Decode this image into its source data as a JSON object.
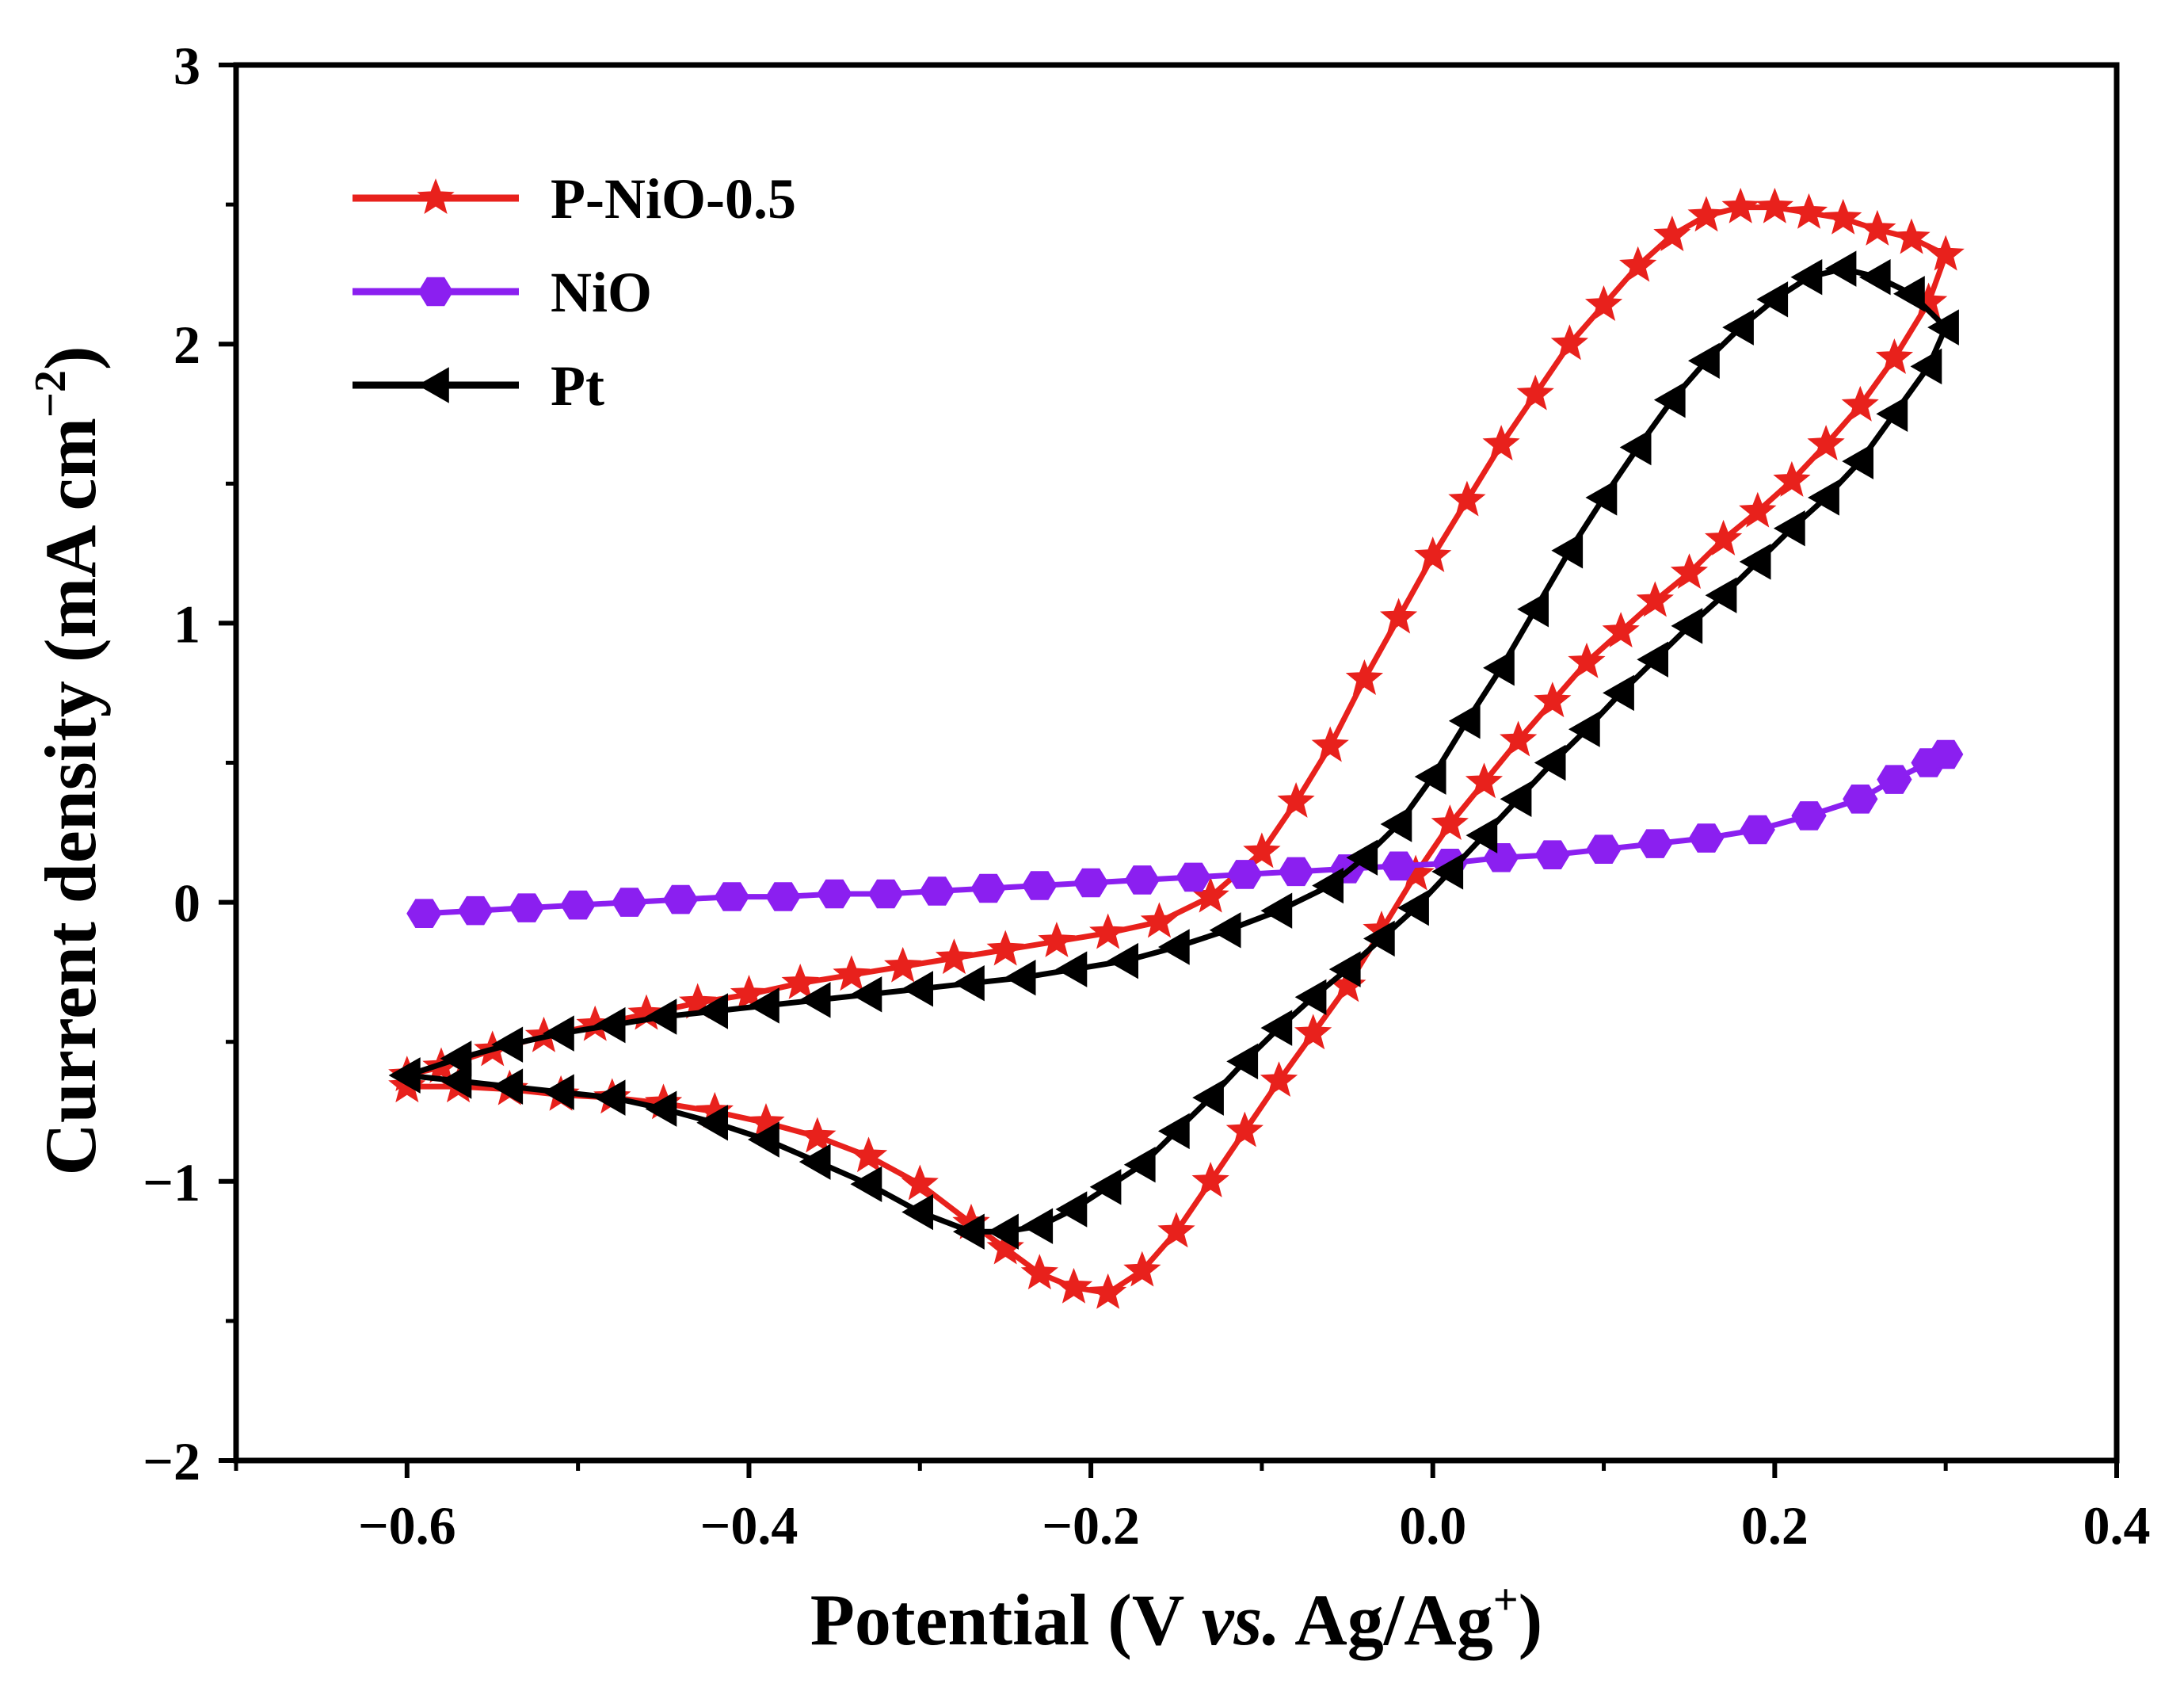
{
  "chart_data": {
    "type": "line",
    "title": "",
    "xlabel": {
      "prefix": "Potential (V ",
      "italic": "vs.",
      "middle": " Ag/Ag",
      "superscript": "+",
      "suffix": ")"
    },
    "ylabel": {
      "main": "Current density (mA cm",
      "superscript": "−2",
      "suffix": ")"
    },
    "xlim": [
      -0.7,
      0.4
    ],
    "ylim": [
      -2,
      3
    ],
    "xticks": [
      -0.6,
      -0.4,
      -0.2,
      0.0,
      0.2,
      0.4
    ],
    "xtick_labels": [
      "−0.6",
      "−0.4",
      "−0.2",
      "0.0",
      "0.2",
      "0.4"
    ],
    "yticks": [
      -2,
      -1,
      0,
      1,
      2,
      3
    ],
    "ytick_labels": [
      "−2",
      "−1",
      "0",
      "1",
      "2",
      "3"
    ],
    "grid": false,
    "legend_position": "top-left",
    "series": [
      {
        "name": "P-NiO-0.5",
        "color": "#e8211c",
        "marker": "star",
        "points": [
          [
            -0.6,
            -0.62
          ],
          [
            -0.58,
            -0.59
          ],
          [
            -0.55,
            -0.53
          ],
          [
            -0.52,
            -0.48
          ],
          [
            -0.49,
            -0.44
          ],
          [
            -0.46,
            -0.4
          ],
          [
            -0.43,
            -0.36
          ],
          [
            -0.4,
            -0.33
          ],
          [
            -0.37,
            -0.29
          ],
          [
            -0.34,
            -0.26
          ],
          [
            -0.31,
            -0.23
          ],
          [
            -0.28,
            -0.2
          ],
          [
            -0.25,
            -0.17
          ],
          [
            -0.22,
            -0.14
          ],
          [
            -0.19,
            -0.11
          ],
          [
            -0.16,
            -0.07
          ],
          [
            -0.13,
            0.02
          ],
          [
            -0.1,
            0.18
          ],
          [
            -0.08,
            0.36
          ],
          [
            -0.06,
            0.56
          ],
          [
            -0.04,
            0.8
          ],
          [
            -0.02,
            1.02
          ],
          [
            0.0,
            1.24
          ],
          [
            0.02,
            1.44
          ],
          [
            0.04,
            1.64
          ],
          [
            0.06,
            1.82
          ],
          [
            0.08,
            2.0
          ],
          [
            0.1,
            2.14
          ],
          [
            0.12,
            2.28
          ],
          [
            0.14,
            2.39
          ],
          [
            0.16,
            2.46
          ],
          [
            0.18,
            2.49
          ],
          [
            0.2,
            2.49
          ],
          [
            0.22,
            2.47
          ],
          [
            0.24,
            2.45
          ],
          [
            0.26,
            2.41
          ],
          [
            0.28,
            2.38
          ],
          [
            0.3,
            2.32
          ],
          [
            0.29,
            2.15
          ],
          [
            0.27,
            1.95
          ],
          [
            0.25,
            1.78
          ],
          [
            0.23,
            1.64
          ],
          [
            0.21,
            1.51
          ],
          [
            0.19,
            1.4
          ],
          [
            0.17,
            1.3
          ],
          [
            0.15,
            1.18
          ],
          [
            0.13,
            1.08
          ],
          [
            0.11,
            0.97
          ],
          [
            0.09,
            0.86
          ],
          [
            0.07,
            0.72
          ],
          [
            0.05,
            0.58
          ],
          [
            0.03,
            0.43
          ],
          [
            0.01,
            0.28
          ],
          [
            -0.01,
            0.1
          ],
          [
            -0.03,
            -0.1
          ],
          [
            -0.05,
            -0.3
          ],
          [
            -0.07,
            -0.47
          ],
          [
            -0.09,
            -0.64
          ],
          [
            -0.11,
            -0.82
          ],
          [
            -0.13,
            -1.0
          ],
          [
            -0.15,
            -1.18
          ],
          [
            -0.17,
            -1.32
          ],
          [
            -0.19,
            -1.4
          ],
          [
            -0.21,
            -1.38
          ],
          [
            -0.23,
            -1.33
          ],
          [
            -0.25,
            -1.24
          ],
          [
            -0.27,
            -1.15
          ],
          [
            -0.3,
            -1.01
          ],
          [
            -0.33,
            -0.91
          ],
          [
            -0.36,
            -0.84
          ],
          [
            -0.39,
            -0.79
          ],
          [
            -0.42,
            -0.75
          ],
          [
            -0.45,
            -0.72
          ],
          [
            -0.48,
            -0.7
          ],
          [
            -0.51,
            -0.69
          ],
          [
            -0.54,
            -0.67
          ],
          [
            -0.57,
            -0.66
          ],
          [
            -0.6,
            -0.66
          ]
        ]
      },
      {
        "name": "NiO",
        "color": "#8b1ff0",
        "marker": "hexagon",
        "points": [
          [
            -0.59,
            -0.04
          ],
          [
            -0.56,
            -0.03
          ],
          [
            -0.53,
            -0.02
          ],
          [
            -0.5,
            -0.01
          ],
          [
            -0.47,
            0.0
          ],
          [
            -0.44,
            0.01
          ],
          [
            -0.41,
            0.02
          ],
          [
            -0.38,
            0.02
          ],
          [
            -0.35,
            0.03
          ],
          [
            -0.32,
            0.03
          ],
          [
            -0.29,
            0.04
          ],
          [
            -0.26,
            0.05
          ],
          [
            -0.23,
            0.06
          ],
          [
            -0.2,
            0.07
          ],
          [
            -0.17,
            0.08
          ],
          [
            -0.14,
            0.09
          ],
          [
            -0.11,
            0.1
          ],
          [
            -0.08,
            0.11
          ],
          [
            -0.05,
            0.12
          ],
          [
            -0.02,
            0.13
          ],
          [
            0.01,
            0.14
          ],
          [
            0.04,
            0.16
          ],
          [
            0.07,
            0.17
          ],
          [
            0.1,
            0.19
          ],
          [
            0.13,
            0.21
          ],
          [
            0.16,
            0.23
          ],
          [
            0.19,
            0.26
          ],
          [
            0.22,
            0.31
          ],
          [
            0.25,
            0.37
          ],
          [
            0.27,
            0.44
          ],
          [
            0.29,
            0.5
          ],
          [
            0.3,
            0.53
          ]
        ]
      },
      {
        "name": "Pt",
        "color": "#000000",
        "marker": "triangle-left",
        "points": [
          [
            -0.6,
            -0.62
          ],
          [
            -0.57,
            -0.56
          ],
          [
            -0.54,
            -0.51
          ],
          [
            -0.51,
            -0.47
          ],
          [
            -0.48,
            -0.44
          ],
          [
            -0.45,
            -0.41
          ],
          [
            -0.42,
            -0.39
          ],
          [
            -0.39,
            -0.37
          ],
          [
            -0.36,
            -0.35
          ],
          [
            -0.33,
            -0.33
          ],
          [
            -0.3,
            -0.31
          ],
          [
            -0.27,
            -0.29
          ],
          [
            -0.24,
            -0.27
          ],
          [
            -0.21,
            -0.24
          ],
          [
            -0.18,
            -0.21
          ],
          [
            -0.15,
            -0.16
          ],
          [
            -0.12,
            -0.1
          ],
          [
            -0.09,
            -0.03
          ],
          [
            -0.06,
            0.06
          ],
          [
            -0.04,
            0.16
          ],
          [
            -0.02,
            0.28
          ],
          [
            0.0,
            0.45
          ],
          [
            0.02,
            0.65
          ],
          [
            0.04,
            0.84
          ],
          [
            0.06,
            1.05
          ],
          [
            0.08,
            1.26
          ],
          [
            0.1,
            1.45
          ],
          [
            0.12,
            1.63
          ],
          [
            0.14,
            1.8
          ],
          [
            0.16,
            1.94
          ],
          [
            0.18,
            2.06
          ],
          [
            0.2,
            2.16
          ],
          [
            0.22,
            2.24
          ],
          [
            0.24,
            2.27
          ],
          [
            0.26,
            2.24
          ],
          [
            0.28,
            2.18
          ],
          [
            0.3,
            2.06
          ],
          [
            0.29,
            1.92
          ],
          [
            0.27,
            1.75
          ],
          [
            0.25,
            1.58
          ],
          [
            0.23,
            1.45
          ],
          [
            0.21,
            1.34
          ],
          [
            0.19,
            1.22
          ],
          [
            0.17,
            1.1
          ],
          [
            0.15,
            0.99
          ],
          [
            0.13,
            0.87
          ],
          [
            0.11,
            0.75
          ],
          [
            0.09,
            0.62
          ],
          [
            0.07,
            0.5
          ],
          [
            0.05,
            0.37
          ],
          [
            0.03,
            0.24
          ],
          [
            0.01,
            0.11
          ],
          [
            -0.01,
            -0.02
          ],
          [
            -0.03,
            -0.13
          ],
          [
            -0.05,
            -0.24
          ],
          [
            -0.07,
            -0.34
          ],
          [
            -0.09,
            -0.45
          ],
          [
            -0.11,
            -0.57
          ],
          [
            -0.13,
            -0.7
          ],
          [
            -0.15,
            -0.82
          ],
          [
            -0.17,
            -0.94
          ],
          [
            -0.19,
            -1.02
          ],
          [
            -0.21,
            -1.1
          ],
          [
            -0.23,
            -1.16
          ],
          [
            -0.25,
            -1.18
          ],
          [
            -0.27,
            -1.18
          ],
          [
            -0.3,
            -1.11
          ],
          [
            -0.33,
            -1.01
          ],
          [
            -0.36,
            -0.93
          ],
          [
            -0.39,
            -0.85
          ],
          [
            -0.42,
            -0.79
          ],
          [
            -0.45,
            -0.74
          ],
          [
            -0.48,
            -0.7
          ],
          [
            -0.51,
            -0.68
          ],
          [
            -0.54,
            -0.66
          ],
          [
            -0.57,
            -0.64
          ],
          [
            -0.6,
            -0.62
          ]
        ]
      }
    ]
  }
}
